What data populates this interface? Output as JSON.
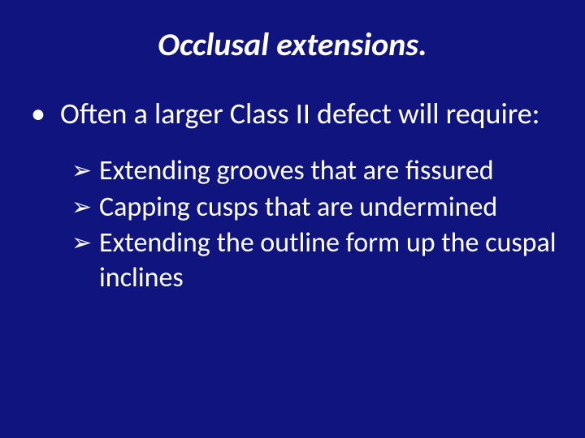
{
  "background_color": "#10147f",
  "text_color": "#ffffff",
  "title": {
    "text": "Occlusal extensions.",
    "font_style": "italic",
    "font_weight": 700,
    "font_size_pt": 40,
    "align": "center"
  },
  "body": {
    "font_size_l1_pt": 36,
    "font_size_l2_pt": 34,
    "l1_marker": "•",
    "l2_marker": "➢",
    "items": [
      {
        "level": 1,
        "text": "Often a larger Class II defect will require:"
      },
      {
        "level": 2,
        "text": "Extending grooves that are fissured"
      },
      {
        "level": 2,
        "text": "Capping cusps that are undermined"
      },
      {
        "level": 2,
        "text": "Extending the outline form up the cuspal inclines"
      }
    ]
  }
}
